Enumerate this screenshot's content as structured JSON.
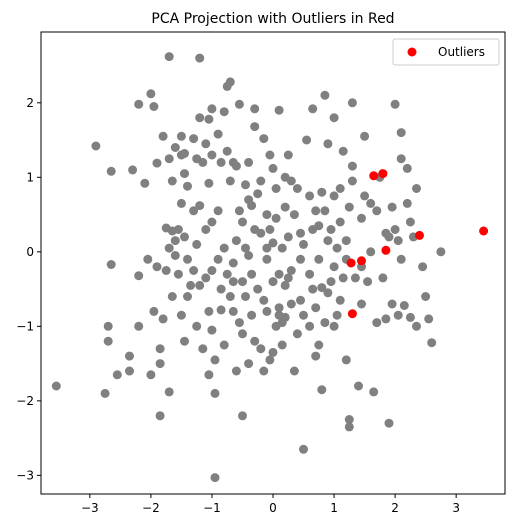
{
  "chart_data": {
    "type": "scatter",
    "title": "PCA Projection with Outliers in Red",
    "xlabel": "",
    "ylabel": "",
    "xlim": [
      -3.8,
      3.8
    ],
    "ylim": [
      -3.25,
      2.95
    ],
    "xticks": [
      -3,
      -2,
      -1,
      0,
      1,
      2,
      3
    ],
    "yticks": [
      -3,
      -2,
      -1,
      0,
      1,
      2
    ],
    "grid": false,
    "legend": {
      "placement": "top-right",
      "entries": [
        "Outliers"
      ]
    },
    "colors": {
      "inliers": "#808080",
      "outliers": "#ff0000"
    },
    "series": [
      {
        "name": "",
        "color": "#808080",
        "points": [
          [
            -3.55,
            -1.8
          ],
          [
            -2.9,
            1.42
          ],
          [
            -2.75,
            -1.9
          ],
          [
            -2.7,
            -1.0
          ],
          [
            -2.7,
            -1.2
          ],
          [
            -2.65,
            1.08
          ],
          [
            -2.65,
            -0.17
          ],
          [
            -2.55,
            -1.65
          ],
          [
            -2.35,
            -1.4
          ],
          [
            -2.35,
            -1.6
          ],
          [
            -2.3,
            1.1
          ],
          [
            -2.2,
            -0.32
          ],
          [
            -2.2,
            -1.0
          ],
          [
            -2.2,
            1.98
          ],
          [
            -2.1,
            0.92
          ],
          [
            -2.05,
            -0.1
          ],
          [
            -2.0,
            -1.65
          ],
          [
            -2.0,
            2.12
          ],
          [
            -1.95,
            -0.8
          ],
          [
            -1.95,
            1.95
          ],
          [
            -1.9,
            -0.2
          ],
          [
            -1.9,
            1.19
          ],
          [
            -1.85,
            -1.3
          ],
          [
            -1.85,
            -1.5
          ],
          [
            -1.85,
            -2.2
          ],
          [
            -1.8,
            -0.9
          ],
          [
            -1.8,
            1.55
          ],
          [
            -1.75,
            -0.25
          ],
          [
            -1.75,
            0.32
          ],
          [
            -1.7,
            0.05
          ],
          [
            -1.7,
            -1.88
          ],
          [
            -1.7,
            1.25
          ],
          [
            -1.7,
            2.62
          ],
          [
            -1.65,
            0.28
          ],
          [
            -1.65,
            -0.6
          ],
          [
            -1.65,
            0.95
          ],
          [
            -1.6,
            0.15
          ],
          [
            -1.6,
            -0.05
          ],
          [
            -1.6,
            1.4
          ],
          [
            -1.55,
            -0.3
          ],
          [
            -1.55,
            0.3
          ],
          [
            -1.5,
            0.65
          ],
          [
            -1.5,
            1.55
          ],
          [
            -1.5,
            -0.85
          ],
          [
            -1.5,
            1.3
          ],
          [
            -1.45,
            0.2
          ],
          [
            -1.45,
            1.05
          ],
          [
            -1.45,
            -1.2
          ],
          [
            -1.45,
            1.32
          ],
          [
            -1.4,
            -0.1
          ],
          [
            -1.4,
            0.88
          ],
          [
            -1.4,
            -0.6
          ],
          [
            -1.35,
            -0.45
          ],
          [
            -1.3,
            0.55
          ],
          [
            -1.3,
            1.52
          ],
          [
            -1.3,
            -0.25
          ],
          [
            -1.25,
            1.25
          ],
          [
            -1.25,
            -1.0
          ],
          [
            -1.25,
            0.1
          ],
          [
            -1.2,
            1.8
          ],
          [
            -1.2,
            0.62
          ],
          [
            -1.2,
            -0.45
          ],
          [
            -1.2,
            2.6
          ],
          [
            -1.15,
            -1.3
          ],
          [
            -1.15,
            1.2
          ],
          [
            -1.1,
            0.3
          ],
          [
            -1.1,
            -0.35
          ],
          [
            -1.1,
            1.45
          ],
          [
            -1.05,
            -0.8
          ],
          [
            -1.05,
            -1.65
          ],
          [
            -1.05,
            0.92
          ],
          [
            -1.05,
            1.78
          ],
          [
            -1.0,
            -0.25
          ],
          [
            -1.0,
            1.3
          ],
          [
            -1.0,
            0.4
          ],
          [
            -1.0,
            1.92
          ],
          [
            -1.0,
            -1.05
          ],
          [
            -0.95,
            -1.45
          ],
          [
            -0.95,
            -1.9
          ],
          [
            -0.95,
            -3.03
          ],
          [
            -0.9,
            0.55
          ],
          [
            -0.9,
            -0.1
          ],
          [
            -0.9,
            1.58
          ],
          [
            -0.85,
            1.2
          ],
          [
            -0.85,
            -0.5
          ],
          [
            -0.85,
            -0.78
          ],
          [
            -0.8,
            0.05
          ],
          [
            -0.8,
            1.88
          ],
          [
            -0.8,
            -1.25
          ],
          [
            -0.75,
            2.22
          ],
          [
            -0.75,
            1.35
          ],
          [
            -0.75,
            -0.3
          ],
          [
            -0.7,
            0.95
          ],
          [
            -0.7,
            -0.6
          ],
          [
            -0.7,
            2.28
          ],
          [
            -0.65,
            -0.15
          ],
          [
            -0.65,
            1.2
          ],
          [
            -0.65,
            -0.4
          ],
          [
            -0.65,
            -0.8
          ],
          [
            -0.6,
            0.15
          ],
          [
            -0.6,
            1.15
          ],
          [
            -0.6,
            -1.6
          ],
          [
            -0.55,
            0.55
          ],
          [
            -0.55,
            -0.95
          ],
          [
            -0.55,
            1.98
          ],
          [
            -0.5,
            -0.4
          ],
          [
            -0.5,
            0.4
          ],
          [
            -0.5,
            -1.1
          ],
          [
            -0.5,
            -2.2
          ],
          [
            -0.45,
            0.9
          ],
          [
            -0.45,
            -0.6
          ],
          [
            -0.45,
            0.05
          ],
          [
            -0.4,
            -0.05
          ],
          [
            -0.4,
            1.2
          ],
          [
            -0.4,
            0.7
          ],
          [
            -0.4,
            -1.5
          ],
          [
            -0.35,
            -0.3
          ],
          [
            -0.35,
            0.62
          ],
          [
            -0.35,
            -0.85
          ],
          [
            -0.3,
            1.92
          ],
          [
            -0.3,
            -1.2
          ],
          [
            -0.3,
            0.3
          ],
          [
            -0.3,
            1.68
          ],
          [
            -0.25,
            0.78
          ],
          [
            -0.25,
            -0.5
          ],
          [
            -0.2,
            0.25
          ],
          [
            -0.2,
            -1.3
          ],
          [
            -0.2,
            0.95
          ],
          [
            -0.15,
            1.52
          ],
          [
            -0.15,
            -0.65
          ],
          [
            -0.15,
            -1.6
          ],
          [
            -0.1,
            0.5
          ],
          [
            -0.1,
            -0.1
          ],
          [
            -0.1,
            0.05
          ],
          [
            -0.1,
            -0.8
          ],
          [
            -0.05,
            0.3
          ],
          [
            -0.05,
            1.3
          ],
          [
            -0.05,
            -1.45
          ],
          [
            0.0,
            1.12
          ],
          [
            0.0,
            -0.4
          ],
          [
            0.0,
            0.12
          ],
          [
            0.0,
            -1.35
          ],
          [
            0.05,
            0.85
          ],
          [
            0.05,
            0.45
          ],
          [
            0.05,
            -1.0
          ],
          [
            0.1,
            -0.3
          ],
          [
            0.1,
            -0.85
          ],
          [
            0.1,
            1.9
          ],
          [
            0.1,
            -0.75
          ],
          [
            0.15,
            0.05
          ],
          [
            0.15,
            -0.95
          ],
          [
            0.15,
            -1.25
          ],
          [
            0.2,
            0.6
          ],
          [
            0.2,
            -0.45
          ],
          [
            0.2,
            1.0
          ],
          [
            0.2,
            -0.88
          ],
          [
            0.25,
            0.2
          ],
          [
            0.25,
            1.3
          ],
          [
            0.25,
            -0.35
          ],
          [
            0.3,
            -0.7
          ],
          [
            0.3,
            -0.25
          ],
          [
            0.3,
            0.95
          ],
          [
            0.35,
            -1.6
          ],
          [
            0.35,
            0.5
          ],
          [
            0.4,
            0.85
          ],
          [
            0.4,
            -1.1
          ],
          [
            0.45,
            0.25
          ],
          [
            0.45,
            -0.1
          ],
          [
            0.45,
            -0.65
          ],
          [
            0.5,
            -2.65
          ],
          [
            0.5,
            0.1
          ],
          [
            0.5,
            -0.85
          ],
          [
            0.55,
            1.5
          ],
          [
            0.6,
            -0.3
          ],
          [
            0.6,
            0.75
          ],
          [
            0.6,
            -1.0
          ],
          [
            0.65,
            0.3
          ],
          [
            0.65,
            -0.5
          ],
          [
            0.65,
            1.92
          ],
          [
            0.7,
            0.55
          ],
          [
            0.7,
            -0.75
          ],
          [
            0.7,
            -1.4
          ],
          [
            0.75,
            -0.1
          ],
          [
            0.75,
            0.35
          ],
          [
            0.75,
            -1.25
          ],
          [
            0.8,
            0.8
          ],
          [
            0.8,
            -0.48
          ],
          [
            0.8,
            -1.85
          ],
          [
            0.85,
            0.55
          ],
          [
            0.85,
            -0.95
          ],
          [
            0.85,
            2.1
          ],
          [
            0.9,
            0.15
          ],
          [
            0.9,
            -0.55
          ],
          [
            0.9,
            1.45
          ],
          [
            0.95,
            0.3
          ],
          [
            0.95,
            -0.4
          ],
          [
            1.0,
            0.75
          ],
          [
            1.0,
            -0.2
          ],
          [
            1.0,
            -1.0
          ],
          [
            1.0,
            1.8
          ],
          [
            1.05,
            0.05
          ],
          [
            1.05,
            -0.85
          ],
          [
            1.1,
            0.85
          ],
          [
            1.1,
            0.4
          ],
          [
            1.1,
            -0.65
          ],
          [
            1.15,
            -0.35
          ],
          [
            1.15,
            1.35
          ],
          [
            1.2,
            0.15
          ],
          [
            1.2,
            -0.1
          ],
          [
            1.2,
            -1.45
          ],
          [
            1.25,
            -2.25
          ],
          [
            1.25,
            -2.35
          ],
          [
            1.25,
            0.6
          ],
          [
            1.3,
            1.15
          ],
          [
            1.3,
            0.95
          ],
          [
            1.3,
            2.0
          ],
          [
            1.35,
            -0.35
          ],
          [
            1.4,
            -1.8
          ],
          [
            1.45,
            0.45
          ],
          [
            1.45,
            -0.2
          ],
          [
            1.45,
            -0.7
          ],
          [
            1.5,
            0.75
          ],
          [
            1.5,
            1.55
          ],
          [
            1.55,
            -0.4
          ],
          [
            1.6,
            0.65
          ],
          [
            1.6,
            0.0
          ],
          [
            1.65,
            -1.88
          ],
          [
            1.7,
            -0.95
          ],
          [
            1.7,
            0.55
          ],
          [
            1.75,
            1.0
          ],
          [
            1.8,
            -0.35
          ],
          [
            1.85,
            -0.9
          ],
          [
            1.85,
            0.25
          ],
          [
            1.9,
            0.2
          ],
          [
            1.9,
            -2.3
          ],
          [
            1.95,
            -0.7
          ],
          [
            1.95,
            0.6
          ],
          [
            2.0,
            1.98
          ],
          [
            2.0,
            0.3
          ],
          [
            2.05,
            0.15
          ],
          [
            2.05,
            -0.85
          ],
          [
            2.1,
            1.25
          ],
          [
            2.1,
            -0.1
          ],
          [
            2.1,
            1.6
          ],
          [
            2.15,
            -0.72
          ],
          [
            2.2,
            0.65
          ],
          [
            2.2,
            1.12
          ],
          [
            2.25,
            0.4
          ],
          [
            2.25,
            -0.88
          ],
          [
            2.3,
            0.2
          ],
          [
            2.35,
            -1.0
          ],
          [
            2.35,
            0.85
          ],
          [
            2.45,
            -0.2
          ],
          [
            2.5,
            -0.6
          ],
          [
            2.55,
            -0.9
          ],
          [
            2.6,
            -1.22
          ],
          [
            2.75,
            0.0
          ]
        ]
      },
      {
        "name": "Outliers",
        "color": "#ff0000",
        "points": [
          [
            1.28,
            -0.15
          ],
          [
            1.3,
            -0.83
          ],
          [
            1.45,
            -0.12
          ],
          [
            1.65,
            1.02
          ],
          [
            1.8,
            1.05
          ],
          [
            1.85,
            0.02
          ],
          [
            2.4,
            0.22
          ],
          [
            3.45,
            0.28
          ]
        ]
      }
    ]
  }
}
